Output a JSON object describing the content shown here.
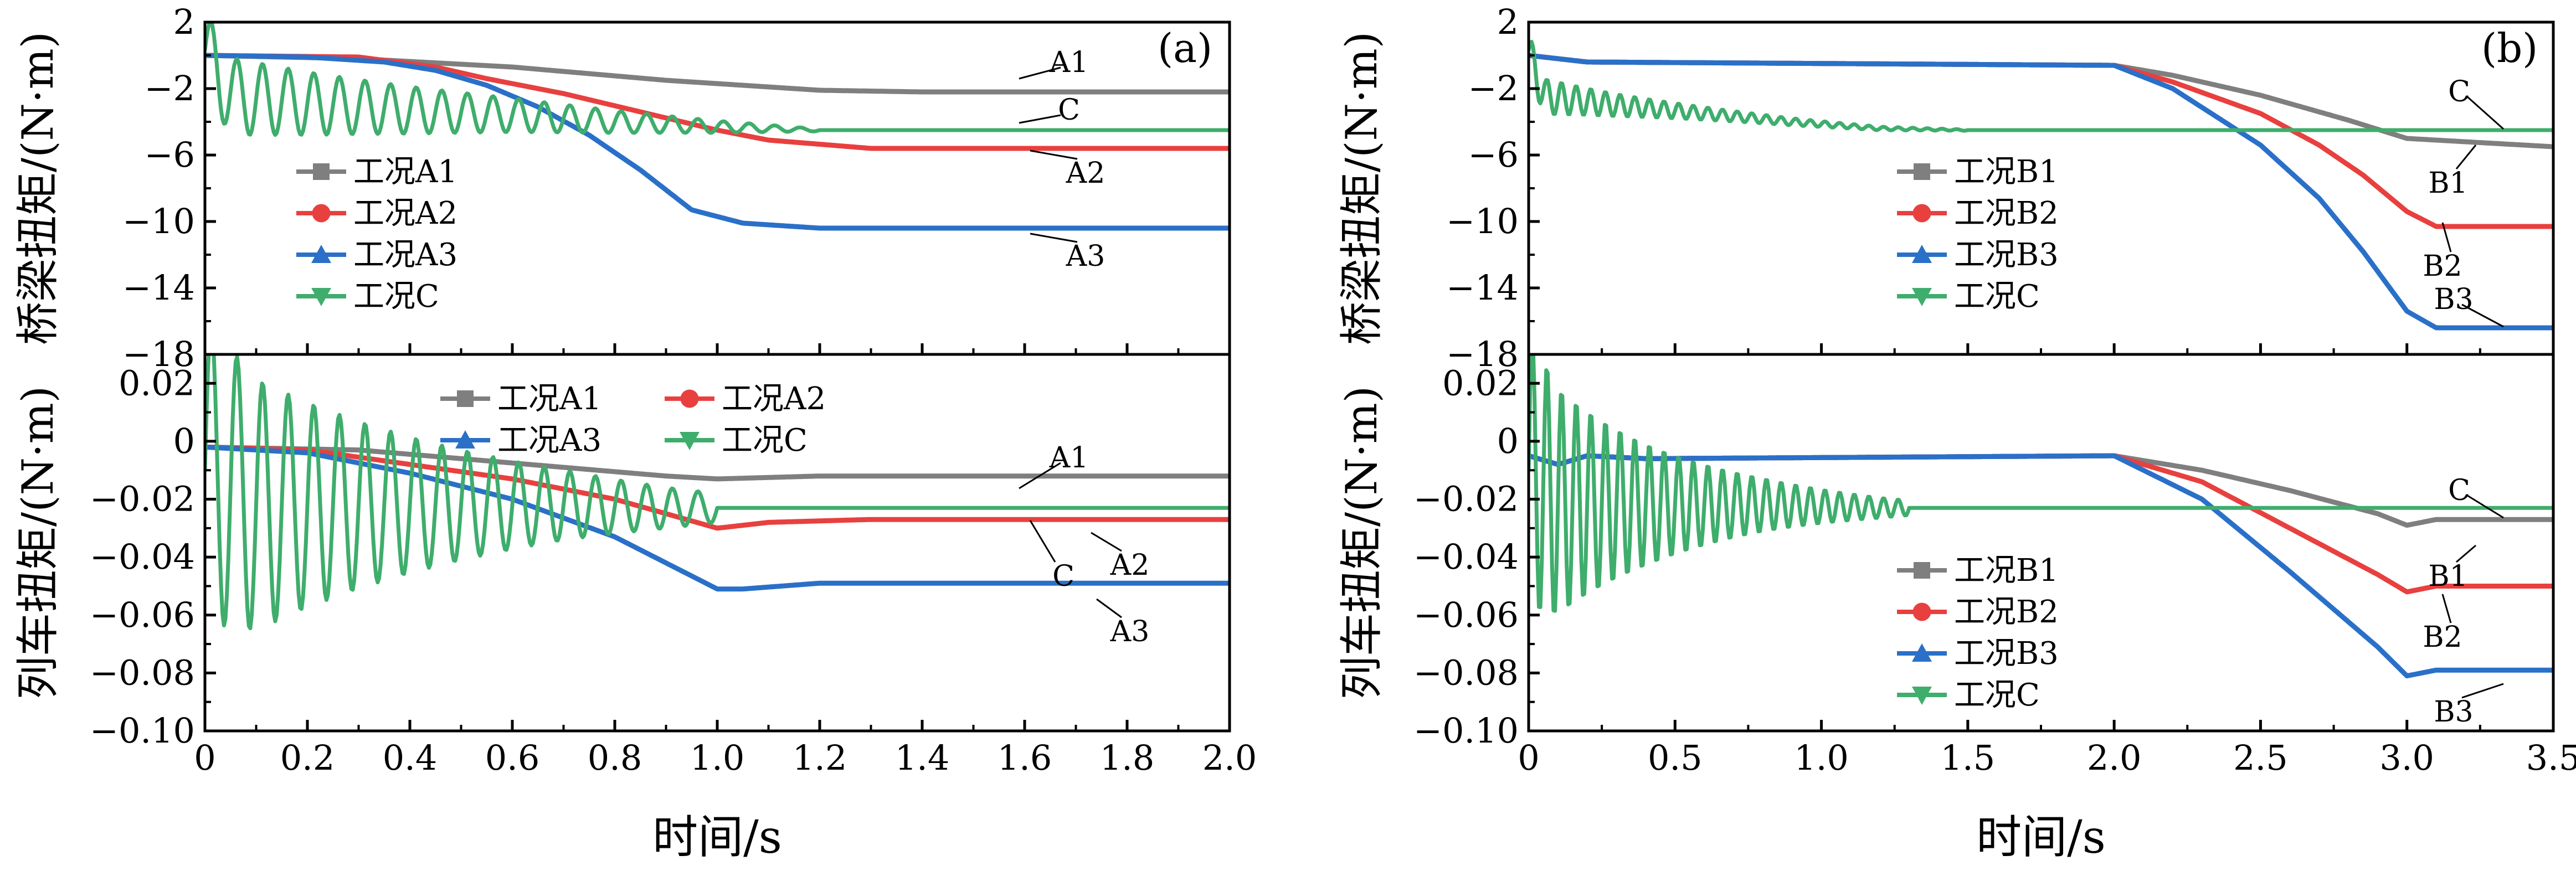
{
  "colors": {
    "A1": "#7f7f7f",
    "A2": "#e8403f",
    "A3": "#2a70c8",
    "C": "#3fad6c",
    "B1": "#7f7f7f",
    "B2": "#e8403f",
    "B3": "#2a70c8"
  },
  "chart_data": [
    {
      "id": "a_top",
      "type": "line",
      "panel_label": "(a)",
      "ylabel": "桥梁扭矩/(N·m)",
      "xlim": [
        0,
        2.0
      ],
      "ylim": [
        -18,
        2
      ],
      "yticks": [
        2,
        -2,
        -6,
        -10,
        -14,
        -18
      ],
      "yticklabels": [
        "2",
        "−2",
        "−6",
        "−10",
        "−14",
        "−18"
      ],
      "xticks": [
        0,
        0.2,
        0.4,
        0.6,
        0.8,
        1.0,
        1.2,
        1.4,
        1.6,
        1.8,
        2.0
      ],
      "legend": [
        "工况A1",
        "工况A2",
        "工况A3",
        "工况C"
      ],
      "series": [
        {
          "key": "A1",
          "name": "工况A1",
          "x": [
            0,
            0.3,
            0.6,
            0.9,
            1.2,
            1.4,
            2.0
          ],
          "y": [
            0,
            -0.2,
            -0.7,
            -1.5,
            -2.1,
            -2.2,
            -2.2
          ]
        },
        {
          "key": "A2",
          "name": "工况A2",
          "x": [
            0,
            0.3,
            0.45,
            0.55,
            0.7,
            0.85,
            1.0,
            1.1,
            1.3,
            2.0
          ],
          "y": [
            0,
            -0.1,
            -0.7,
            -1.4,
            -2.3,
            -3.4,
            -4.5,
            -5.1,
            -5.6,
            -5.6
          ]
        },
        {
          "key": "A3",
          "name": "工况A3",
          "x": [
            0,
            0.2,
            0.35,
            0.45,
            0.55,
            0.65,
            0.75,
            0.85,
            0.95,
            1.05,
            1.2,
            2.0
          ],
          "y": [
            0,
            -0.1,
            -0.4,
            -0.9,
            -1.8,
            -3.1,
            -4.8,
            -6.9,
            -9.3,
            -10.1,
            -10.4,
            -10.4
          ]
        },
        {
          "key": "C",
          "name": "工况C",
          "x": [
            0,
            0.03,
            0.06,
            0.2,
            0.4,
            0.6,
            0.8,
            1.0,
            1.2,
            2.0
          ],
          "y": [
            0.3,
            -1.5,
            -2.5,
            -2.9,
            -3.3,
            -3.6,
            -4.0,
            -4.3,
            -4.5,
            -4.5
          ],
          "osc": [
            1.0,
            1.5
          ],
          "osc_period": 0.05
        }
      ],
      "annotations": [
        "A1",
        "C",
        "A2",
        "A3"
      ]
    },
    {
      "id": "a_bot",
      "type": "line",
      "ylabel": "列车扭矩/(N·m)",
      "xlabel": "时间/s",
      "xlim": [
        0,
        2.0
      ],
      "ylim": [
        -0.1,
        0.03
      ],
      "yticks": [
        0.02,
        0,
        -0.02,
        -0.04,
        -0.06,
        -0.08,
        -0.1
      ],
      "yticklabels": [
        "0.02",
        "0",
        "−0.02",
        "−0.04",
        "−0.06",
        "−0.08",
        "−0.10"
      ],
      "xticks": [
        0,
        0.2,
        0.4,
        0.6,
        0.8,
        1.0,
        1.2,
        1.4,
        1.6,
        1.8,
        2.0
      ],
      "xticklabels": [
        "0",
        "0.2",
        "0.4",
        "0.6",
        "0.8",
        "1.0",
        "1.2",
        "1.4",
        "1.6",
        "1.8",
        "2.0"
      ],
      "legend": [
        "工况A1",
        "工况A2",
        "工况A3",
        "工况C"
      ],
      "series": [
        {
          "key": "A1",
          "name": "工况A1",
          "x": [
            0,
            0.3,
            0.5,
            0.7,
            0.9,
            1.0,
            1.2,
            2.0
          ],
          "y": [
            -0.002,
            -0.003,
            -0.006,
            -0.009,
            -0.012,
            -0.013,
            -0.012,
            -0.012
          ]
        },
        {
          "key": "A2",
          "name": "工况A2",
          "x": [
            0,
            0.2,
            0.4,
            0.6,
            0.8,
            0.9,
            1.0,
            1.1,
            1.3,
            2.0
          ],
          "y": [
            -0.002,
            -0.003,
            -0.008,
            -0.013,
            -0.02,
            -0.025,
            -0.03,
            -0.028,
            -0.027,
            -0.027
          ]
        },
        {
          "key": "A3",
          "name": "工况A3",
          "x": [
            0,
            0.2,
            0.4,
            0.6,
            0.8,
            0.9,
            1.0,
            1.05,
            1.2,
            2.0
          ],
          "y": [
            -0.002,
            -0.004,
            -0.011,
            -0.02,
            -0.033,
            -0.042,
            -0.051,
            -0.051,
            -0.049,
            -0.049
          ]
        },
        {
          "key": "C",
          "name": "工况C",
          "x": [
            0,
            0.1,
            0.3,
            0.5,
            0.7,
            0.9,
            1.0,
            1.2,
            2.0
          ],
          "y": [
            -0.01,
            -0.022,
            -0.022,
            -0.022,
            -0.022,
            -0.023,
            -0.023,
            -0.023,
            -0.023
          ],
          "osc": [
            0.045,
            0.008
          ],
          "osc_period": 0.05,
          "osc_end": 1.0
        }
      ],
      "annotations": [
        "A1",
        "A2",
        "C",
        "A3"
      ]
    },
    {
      "id": "b_top",
      "type": "line",
      "panel_label": "(b)",
      "ylabel": "桥梁扭矩/(N·m)",
      "xlim": [
        0,
        3.5
      ],
      "ylim": [
        -18,
        2
      ],
      "yticks": [
        2,
        -2,
        -6,
        -10,
        -14,
        -18
      ],
      "yticklabels": [
        "2",
        "−2",
        "−6",
        "−10",
        "−14",
        "−18"
      ],
      "xticks": [
        0,
        0.5,
        1.0,
        1.5,
        2.0,
        2.5,
        3.0,
        3.5
      ],
      "legend": [
        "工况B1",
        "工况B2",
        "工况B3",
        "工况C"
      ],
      "series": [
        {
          "key": "B1",
          "name": "工况B1",
          "x": [
            0,
            0.2,
            2.0,
            2.2,
            2.5,
            2.8,
            3.0,
            3.5
          ],
          "y": [
            0,
            -0.4,
            -0.6,
            -1.2,
            -2.4,
            -3.9,
            -5.0,
            -5.5
          ]
        },
        {
          "key": "B2",
          "name": "工况B2",
          "x": [
            0,
            0.2,
            2.0,
            2.2,
            2.5,
            2.7,
            2.85,
            3.0,
            3.1,
            3.5
          ],
          "y": [
            0,
            -0.4,
            -0.6,
            -1.6,
            -3.5,
            -5.4,
            -7.2,
            -9.4,
            -10.3,
            -10.3
          ]
        },
        {
          "key": "B3",
          "name": "工况B3",
          "x": [
            0,
            0.2,
            2.0,
            2.2,
            2.5,
            2.7,
            2.85,
            3.0,
            3.1,
            3.5
          ],
          "y": [
            0,
            -0.4,
            -0.6,
            -2.0,
            -5.4,
            -8.6,
            -11.8,
            -15.4,
            -16.4,
            -16.4
          ]
        },
        {
          "key": "C",
          "name": "工况C",
          "x": [
            0,
            0.03,
            0.06,
            0.3,
            0.6,
            0.9,
            1.2,
            1.5,
            3.5
          ],
          "y": [
            0.3,
            -1.5,
            -2.5,
            -3.0,
            -3.5,
            -4.0,
            -4.4,
            -4.5,
            -4.5
          ],
          "osc": [
            1.0,
            0.2
          ],
          "osc_period": 0.05,
          "osc_end": 1.5
        }
      ],
      "annotations": [
        "C",
        "B1",
        "B2",
        "B3"
      ]
    },
    {
      "id": "b_bot",
      "type": "line",
      "ylabel": "列车扭矩/(N·m)",
      "xlabel": "时间/s",
      "xlim": [
        0,
        3.5
      ],
      "ylim": [
        -0.1,
        0.03
      ],
      "yticks": [
        0.02,
        0,
        -0.02,
        -0.04,
        -0.06,
        -0.08,
        -0.1
      ],
      "yticklabels": [
        "0.02",
        "0",
        "−0.02",
        "−0.04",
        "−0.06",
        "−0.08",
        "−0.10"
      ],
      "xticks": [
        0,
        0.5,
        1.0,
        1.5,
        2.0,
        2.5,
        3.0,
        3.5
      ],
      "xticklabels": [
        "0",
        "0.5",
        "1.0",
        "1.5",
        "2.0",
        "2.5",
        "3.0",
        "3.5"
      ],
      "legend": [
        "工况B1",
        "工况B2",
        "工况B3",
        "工况C"
      ],
      "series": [
        {
          "key": "B1",
          "name": "工况B1",
          "x": [
            0,
            0.1,
            0.2,
            0.4,
            2.0,
            2.3,
            2.6,
            2.9,
            3.0,
            3.1,
            3.5
          ],
          "y": [
            -0.005,
            -0.008,
            -0.005,
            -0.006,
            -0.005,
            -0.01,
            -0.017,
            -0.025,
            -0.029,
            -0.027,
            -0.027
          ]
        },
        {
          "key": "B2",
          "name": "工况B2",
          "x": [
            0,
            0.1,
            0.2,
            0.4,
            2.0,
            2.3,
            2.6,
            2.9,
            3.0,
            3.1,
            3.5
          ],
          "y": [
            -0.005,
            -0.008,
            -0.005,
            -0.006,
            -0.005,
            -0.014,
            -0.03,
            -0.046,
            -0.052,
            -0.05,
            -0.05
          ]
        },
        {
          "key": "B3",
          "name": "工况B3",
          "x": [
            0,
            0.1,
            0.2,
            0.4,
            2.0,
            2.3,
            2.6,
            2.9,
            3.0,
            3.1,
            3.5
          ],
          "y": [
            -0.005,
            -0.008,
            -0.005,
            -0.006,
            -0.005,
            -0.02,
            -0.045,
            -0.071,
            -0.081,
            -0.079,
            -0.079
          ]
        },
        {
          "key": "C",
          "name": "工况C",
          "x": [
            0,
            0.1,
            0.4,
            0.8,
            1.2,
            1.6,
            2.0,
            3.5
          ],
          "y": [
            -0.01,
            -0.021,
            -0.022,
            -0.022,
            -0.023,
            -0.023,
            -0.023,
            -0.023
          ],
          "osc": [
            0.045,
            0.004
          ],
          "osc_period": 0.05,
          "osc_end": 1.3
        }
      ],
      "annotations": [
        "C",
        "B1",
        "B2",
        "B3"
      ]
    }
  ]
}
